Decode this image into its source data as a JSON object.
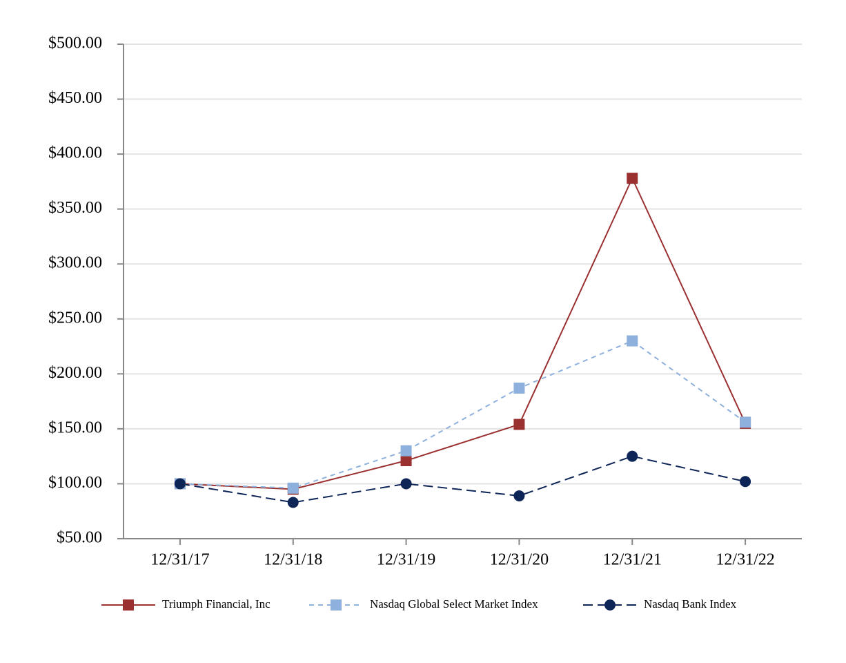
{
  "chart_data": {
    "type": "line",
    "categories": [
      "12/31/17",
      "12/31/18",
      "12/31/19",
      "12/31/20",
      "12/31/21",
      "12/31/22"
    ],
    "series": [
      {
        "name": "Triumph Financial, Inc",
        "color": "#9b3030",
        "dash": "solid",
        "marker": "square",
        "values": [
          100,
          95,
          121,
          154,
          378,
          155
        ]
      },
      {
        "name": "Nasdaq Global Select Market Index",
        "color": "#8db0dc",
        "dash": "dashed",
        "marker": "square",
        "values": [
          100,
          96,
          130,
          187,
          230,
          156
        ]
      },
      {
        "name": "Nasdaq Bank Index",
        "color": "#0e2557",
        "dash": "dashed",
        "marker": "circle",
        "values": [
          100,
          83,
          100,
          89,
          125,
          102
        ]
      }
    ],
    "ylim": [
      50,
      500
    ],
    "yticks": [
      {
        "value": 50,
        "label": "$50.00"
      },
      {
        "value": 100,
        "label": "$100.00"
      },
      {
        "value": 150,
        "label": "$150.00"
      },
      {
        "value": 200,
        "label": "$200.00"
      },
      {
        "value": 250,
        "label": "$250.00"
      },
      {
        "value": 300,
        "label": "$300.00"
      },
      {
        "value": 350,
        "label": "$350.00"
      },
      {
        "value": 400,
        "label": "$400.00"
      },
      {
        "value": 450,
        "label": "$450.00"
      },
      {
        "value": 500,
        "label": "$500.00"
      }
    ],
    "grid": true,
    "legend": "bottom"
  }
}
